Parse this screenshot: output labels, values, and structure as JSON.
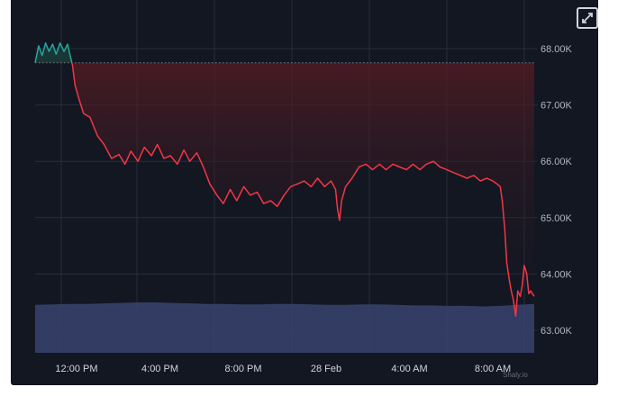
{
  "chart_data": {
    "type": "area",
    "title": "",
    "xlabel": "",
    "ylabel": "",
    "ylim": [
      62600,
      68800
    ],
    "xlim": [
      0,
      100
    ],
    "reference_value": 67750,
    "y_ticks": [
      {
        "value": 68000,
        "label": "68.00K"
      },
      {
        "value": 67000,
        "label": "67.00K"
      },
      {
        "value": 66000,
        "label": "66.00K"
      },
      {
        "value": 65000,
        "label": "65.00K"
      },
      {
        "value": 64000,
        "label": "64.00K"
      },
      {
        "value": 63000,
        "label": "63.00K"
      }
    ],
    "x_ticks": [
      {
        "pos": 8.3,
        "label": "12:00 PM"
      },
      {
        "pos": 25.0,
        "label": "4:00 PM"
      },
      {
        "pos": 41.7,
        "label": "8:00 PM"
      },
      {
        "pos": 58.3,
        "label": "28 Feb"
      },
      {
        "pos": 75.0,
        "label": "4:00 AM"
      },
      {
        "pos": 91.7,
        "label": "8:00 AM"
      }
    ],
    "series": [
      {
        "points": [
          [
            0.0,
            67750
          ],
          [
            0.7,
            68050
          ],
          [
            1.4,
            67880
          ],
          [
            2.1,
            68100
          ],
          [
            2.8,
            67950
          ],
          [
            3.5,
            68080
          ],
          [
            4.2,
            67900
          ],
          [
            5.0,
            68100
          ],
          [
            5.8,
            67950
          ],
          [
            6.5,
            68080
          ],
          [
            7.1,
            67850
          ],
          [
            7.5,
            67700
          ],
          [
            8.0,
            67350
          ],
          [
            8.8,
            67100
          ],
          [
            9.7,
            66850
          ],
          [
            11.0,
            66780
          ],
          [
            12.5,
            66450
          ],
          [
            13.8,
            66300
          ],
          [
            15.3,
            66050
          ],
          [
            16.8,
            66120
          ],
          [
            18.0,
            65950
          ],
          [
            19.2,
            66180
          ],
          [
            20.6,
            66000
          ],
          [
            21.9,
            66250
          ],
          [
            23.3,
            66100
          ],
          [
            24.5,
            66300
          ],
          [
            25.8,
            66050
          ],
          [
            27.1,
            66100
          ],
          [
            28.5,
            65950
          ],
          [
            29.8,
            66200
          ],
          [
            31.0,
            66000
          ],
          [
            32.4,
            66150
          ],
          [
            33.7,
            65900
          ],
          [
            35.0,
            65600
          ],
          [
            36.4,
            65400
          ],
          [
            37.7,
            65250
          ],
          [
            39.1,
            65500
          ],
          [
            40.4,
            65300
          ],
          [
            41.8,
            65550
          ],
          [
            43.1,
            65400
          ],
          [
            44.5,
            65450
          ],
          [
            45.8,
            65250
          ],
          [
            47.2,
            65300
          ],
          [
            48.5,
            65200
          ],
          [
            49.9,
            65400
          ],
          [
            51.2,
            65550
          ],
          [
            52.6,
            65600
          ],
          [
            53.9,
            65650
          ],
          [
            55.3,
            65550
          ],
          [
            56.6,
            65700
          ],
          [
            58.0,
            65550
          ],
          [
            59.3,
            65650
          ],
          [
            60.2,
            65500
          ],
          [
            60.6,
            65150
          ],
          [
            61.0,
            64950
          ],
          [
            61.4,
            65300
          ],
          [
            62.2,
            65550
          ],
          [
            63.5,
            65700
          ],
          [
            64.9,
            65900
          ],
          [
            66.3,
            65950
          ],
          [
            67.6,
            65850
          ],
          [
            69.0,
            65950
          ],
          [
            70.3,
            65850
          ],
          [
            71.7,
            65950
          ],
          [
            73.0,
            65900
          ],
          [
            74.4,
            65850
          ],
          [
            75.7,
            65950
          ],
          [
            77.1,
            65850
          ],
          [
            78.4,
            65950
          ],
          [
            79.8,
            66000
          ],
          [
            81.1,
            65900
          ],
          [
            82.5,
            65850
          ],
          [
            83.8,
            65800
          ],
          [
            85.2,
            65750
          ],
          [
            86.5,
            65700
          ],
          [
            87.9,
            65750
          ],
          [
            89.2,
            65650
          ],
          [
            90.5,
            65700
          ],
          [
            91.7,
            65650
          ],
          [
            92.5,
            65600
          ],
          [
            93.2,
            65550
          ],
          [
            93.6,
            65300
          ],
          [
            94.1,
            64800
          ],
          [
            94.5,
            64200
          ],
          [
            95.0,
            63900
          ],
          [
            95.4,
            63700
          ],
          [
            95.8,
            63550
          ],
          [
            96.3,
            63250
          ],
          [
            96.7,
            63700
          ],
          [
            97.2,
            63600
          ],
          [
            97.6,
            63800
          ],
          [
            98.0,
            64150
          ],
          [
            98.5,
            64000
          ],
          [
            98.9,
            63650
          ],
          [
            99.3,
            63700
          ],
          [
            100.0,
            63600
          ]
        ]
      }
    ],
    "volume": [
      0.95,
      0.96,
      0.97,
      0.97,
      0.98,
      0.99,
      1.0,
      1.0,
      0.99,
      0.98,
      0.97,
      0.97,
      0.96,
      0.96,
      0.97,
      0.97,
      0.96,
      0.95,
      0.95,
      0.96,
      0.96,
      0.95,
      0.94,
      0.94,
      0.93,
      0.93,
      0.92,
      0.93,
      0.95,
      0.97
    ],
    "colors": {
      "background": "#131722",
      "line_above": "#26a69a",
      "line_below": "#f23645",
      "fill_above": "#1a3b38",
      "fill_below": "#5a1c24",
      "volume": "#3a4470",
      "grid": "#2a2e39",
      "reference": "#787b86"
    },
    "grid": true,
    "legend": "none"
  },
  "ui": {
    "watermark": "Shaly.io",
    "expand_icon": "expand-icon"
  }
}
